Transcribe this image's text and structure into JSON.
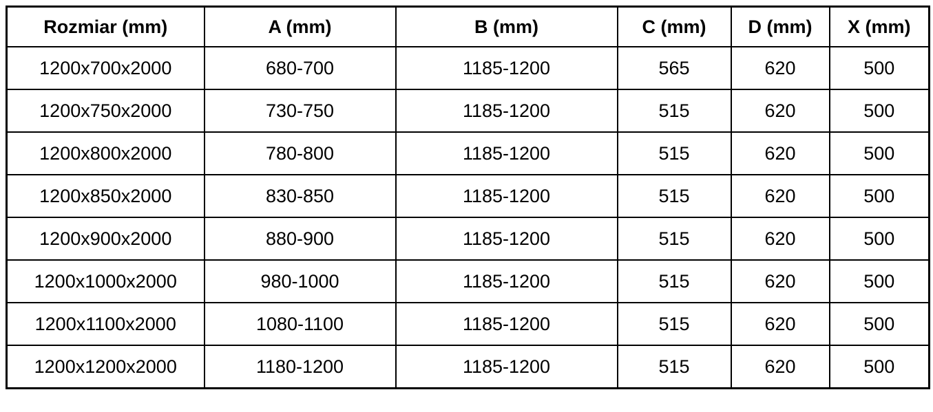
{
  "table": {
    "title": "shower-enclosure-dimensions-table",
    "headers": [
      "Rozmiar (mm)",
      "A (mm)",
      "B (mm)",
      "C (mm)",
      "D (mm)",
      "X (mm)"
    ],
    "rows": [
      [
        "1200x700x2000",
        "680-700",
        "1185-1200",
        "565",
        "620",
        "500"
      ],
      [
        "1200x750x2000",
        "730-750",
        "1185-1200",
        "515",
        "620",
        "500"
      ],
      [
        "1200x800x2000",
        "780-800",
        "1185-1200",
        "515",
        "620",
        "500"
      ],
      [
        "1200x850x2000",
        "830-850",
        "1185-1200",
        "515",
        "620",
        "500"
      ],
      [
        "1200x900x2000",
        "880-900",
        "1185-1200",
        "515",
        "620",
        "500"
      ],
      [
        "1200x1000x2000",
        "980-1000",
        "1185-1200",
        "515",
        "620",
        "500"
      ],
      [
        "1200x1100x2000",
        "1080-1100",
        "1185-1200",
        "515",
        "620",
        "500"
      ],
      [
        "1200x1200x2000",
        "1180-1200",
        "1185-1200",
        "515",
        "620",
        "500"
      ]
    ],
    "colors": {
      "border": "#000000",
      "text": "#000000",
      "background": "#ffffff"
    }
  }
}
